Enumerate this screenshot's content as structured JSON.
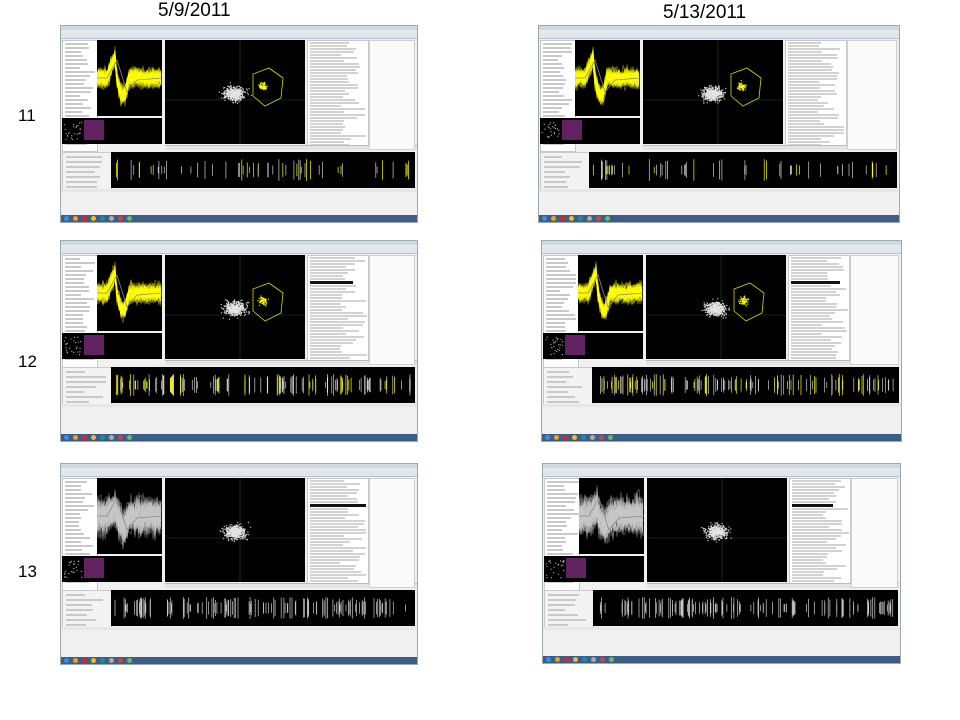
{
  "headers": {
    "date_left": "5/9/2011",
    "date_right": "5/13/2011"
  },
  "rows": [
    {
      "label": "11",
      "left": {
        "waveform": "yellow",
        "cluster_outline": true
      },
      "right": {
        "waveform": "yellow",
        "cluster_outline": true
      }
    },
    {
      "label": "12",
      "left": {
        "waveform": "yellow",
        "cluster_outline": true
      },
      "right": {
        "waveform": "yellow",
        "cluster_outline": true
      }
    },
    {
      "label": "13",
      "left": {
        "waveform": "gray",
        "cluster_outline": false
      },
      "right": {
        "waveform": "gray",
        "cluster_outline": false
      }
    }
  ],
  "colors": {
    "panel_background": "#000000",
    "waveform_highlight": "#ffff00",
    "waveform_unsorted": "#c8c8c8",
    "cluster_outline": "#d8d800",
    "mini_view": "#7a2a7a",
    "taskbar": "#3e5d86",
    "window_chrome": "#f0f0f0"
  },
  "icons": [
    "start-button-icon",
    "taskbar-app-icon"
  ]
}
